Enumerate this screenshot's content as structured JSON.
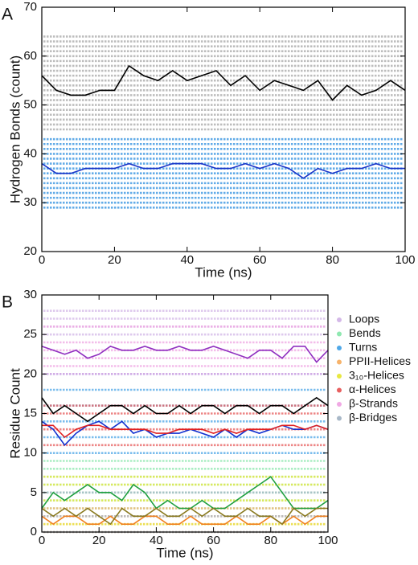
{
  "chart_data": [
    {
      "type": "scatter",
      "panel_label": "A",
      "xlabel": "Time (ns)",
      "ylabel": "Hydrogen Bonds (count)",
      "xlim": [
        0,
        100
      ],
      "ylim": [
        20,
        70
      ],
      "xticks": [
        0,
        20,
        40,
        60,
        80,
        100
      ],
      "yticks": [
        20,
        30,
        40,
        50,
        60,
        70
      ],
      "clouds": [
        {
          "color": "#a8a8a8",
          "levels": [
            45,
            46,
            47,
            48,
            49,
            50,
            51,
            52,
            53,
            54,
            55,
            56,
            57,
            58,
            59,
            60,
            61,
            62,
            63,
            64
          ]
        },
        {
          "color": "#2e8fe0",
          "levels": [
            29,
            30,
            31,
            32,
            33,
            34,
            35,
            36,
            37,
            38,
            39,
            40,
            41,
            42,
            43
          ]
        }
      ],
      "x": [
        0,
        4,
        8,
        12,
        16,
        20,
        24,
        28,
        32,
        36,
        40,
        44,
        48,
        52,
        56,
        60,
        64,
        68,
        72,
        76,
        80,
        84,
        88,
        92,
        96,
        100
      ],
      "lines": [
        {
          "color": "#000000",
          "values": [
            56,
            53,
            52,
            52,
            53,
            53,
            58,
            56,
            55,
            57,
            55,
            56,
            57,
            54,
            56,
            53,
            55,
            54,
            53,
            55,
            51,
            54,
            52,
            53,
            55,
            53
          ]
        },
        {
          "color": "#1a35c8",
          "values": [
            38,
            36,
            36,
            37,
            37,
            37,
            38,
            37,
            37,
            38,
            38,
            38,
            37,
            37,
            38,
            37,
            38,
            37,
            35,
            37,
            36,
            37,
            37,
            38,
            37,
            37
          ]
        }
      ]
    },
    {
      "type": "scatter",
      "panel_label": "B",
      "xlabel": "Time (ns)",
      "ylabel": "Residue Count",
      "xlim": [
        0,
        100
      ],
      "ylim": [
        0,
        30
      ],
      "xticks": [
        0,
        20,
        40,
        60,
        80,
        100
      ],
      "yticks": [
        0,
        5,
        10,
        15,
        20,
        25,
        30
      ],
      "clouds": [
        {
          "name": "Loops",
          "color": "#d4b8e8",
          "levels": [
            25,
            26,
            27,
            28
          ]
        },
        {
          "name": "Bends",
          "color": "#8fe8b0",
          "levels": [
            3,
            4,
            5,
            6,
            7,
            8,
            9
          ]
        },
        {
          "name": "Turns",
          "color": "#4fa8e8",
          "levels": [
            10,
            12,
            14,
            16,
            18,
            20
          ]
        },
        {
          "name": "PPII-Helices",
          "color": "#f7b36b",
          "levels": [
            0,
            1,
            2,
            3
          ]
        },
        {
          "name": "3₁₀-Helices",
          "color": "#e8e840",
          "levels": [
            1,
            4,
            6,
            7
          ]
        },
        {
          "name": "α-Helices",
          "color": "#e86060",
          "levels": [
            11,
            13,
            15,
            16
          ]
        },
        {
          "name": "β-Strands",
          "color": "#f0a8e4",
          "levels": [
            20,
            21,
            22,
            23,
            24,
            26
          ]
        },
        {
          "name": "β-Bridges",
          "color": "#a8b8c8",
          "levels": [
            0,
            2,
            5
          ]
        }
      ],
      "x": [
        0,
        4,
        8,
        12,
        16,
        20,
        24,
        28,
        32,
        36,
        40,
        44,
        48,
        52,
        56,
        60,
        64,
        68,
        72,
        76,
        80,
        84,
        88,
        92,
        96,
        100
      ],
      "lines": [
        {
          "color": "#9030c0",
          "values": [
            23.5,
            23,
            22.5,
            23,
            22,
            22.5,
            23.5,
            23,
            23,
            23.5,
            23,
            23,
            23.5,
            23,
            23,
            23.5,
            23,
            22.5,
            22,
            23,
            23,
            22,
            23.5,
            23.5,
            21.5,
            23
          ]
        },
        {
          "color": "#000000",
          "values": [
            17,
            15,
            16,
            15,
            14,
            15,
            16,
            16,
            15,
            16,
            15,
            15,
            16,
            15,
            16,
            16,
            15,
            16,
            16,
            15,
            16,
            16,
            15,
            16,
            17,
            16
          ]
        },
        {
          "color": "#1030d0",
          "values": [
            14,
            13,
            11,
            12.5,
            13.5,
            14,
            13,
            14,
            12.5,
            13,
            12,
            12.5,
            12.5,
            13,
            12.5,
            12,
            13,
            12,
            13,
            12.5,
            13,
            13.5,
            13,
            13,
            13.5,
            13
          ]
        },
        {
          "color": "#e02020",
          "values": [
            13.5,
            13.5,
            12,
            13,
            13.5,
            13.5,
            13,
            13,
            13,
            13,
            12.5,
            12.5,
            13,
            13,
            13,
            12.5,
            13,
            12.5,
            13,
            13,
            13,
            13.5,
            13.5,
            13,
            13.5,
            13
          ]
        },
        {
          "color": "#20a040",
          "values": [
            3,
            5,
            4,
            5,
            6,
            5,
            5,
            4,
            6,
            5,
            3,
            4,
            3,
            3,
            4,
            3,
            3,
            4,
            5,
            6,
            7,
            5,
            3,
            3,
            3,
            4
          ]
        },
        {
          "color": "#f08020",
          "values": [
            2,
            1,
            2,
            2,
            1,
            1,
            2,
            1,
            1,
            2,
            2,
            1,
            1,
            2,
            1,
            1,
            1,
            2,
            1,
            1,
            2,
            1,
            2,
            1,
            2,
            2
          ]
        },
        {
          "color": "#8a7a20",
          "values": [
            3,
            2,
            3,
            2,
            3,
            2,
            1,
            3,
            2,
            2,
            3,
            2,
            2,
            3,
            2,
            3,
            2,
            2,
            3,
            2,
            2,
            1,
            3,
            2,
            3,
            3
          ]
        }
      ]
    }
  ]
}
